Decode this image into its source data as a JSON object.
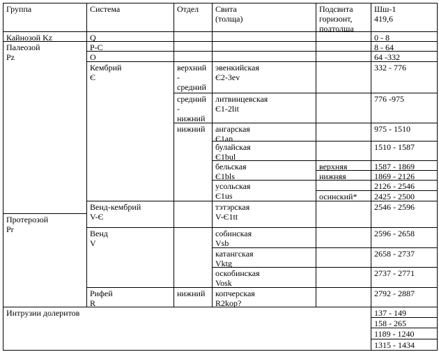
{
  "header": {
    "group": "Группа",
    "system": "Система",
    "division": "Отдел",
    "suite": "Свита\n(толща)",
    "subsuite": "Подсвита\nгоризонт,\nподтолща",
    "well": "Шш-1\n419,6"
  },
  "groups": {
    "kz": "Кайнозой Kz",
    "pz": "Палеозой\nPz",
    "pr": "Протерозой\nPr",
    "intrusions": "Интрузии долеритов"
  },
  "systems": [
    "Q",
    "P-C",
    "O",
    "Кембрий\nЄ",
    "Венд-кембрий\nV-Є",
    "Венд\nV",
    "Рифей\nR"
  ],
  "divisions": [
    "верхний\n-\nсредний",
    "средний\n-\nнижний",
    "нижний",
    "нижний"
  ],
  "suites": [
    "эвенкийская\nЄ2-3ev",
    "литвинцевская\nЄ1-2lit",
    "ангарская\nЄ1an",
    "булайская\nЄ1bul",
    "бельская\nЄ1bls",
    "усольская\nЄ1us",
    "тэтэрская\nV-Є1tt",
    "собинская\nVsb",
    "катангская\nVktg",
    "оскобинская\nVosk",
    "копчерская\nR2kop?"
  ],
  "subsuites": [
    "верхняя",
    "нижняя",
    "осинский*"
  ],
  "depths": [
    "0 - 8",
    "8 - 64",
    "64 -332",
    "332 - 776",
    "776 -975",
    "975 - 1510",
    "1510 - 1587",
    "1587 - 1869",
    "1869 - 2126",
    "2126 - 2546",
    "2425 - 2500",
    "2546 - 2596",
    "2596 - 2658",
    "2658 - 2737",
    "2737 - 2771",
    "2792 - 2887"
  ],
  "intrusion_depths": [
    "137 - 149",
    "158 - 265",
    "1189 - 1240",
    "1315 - 1434"
  ]
}
